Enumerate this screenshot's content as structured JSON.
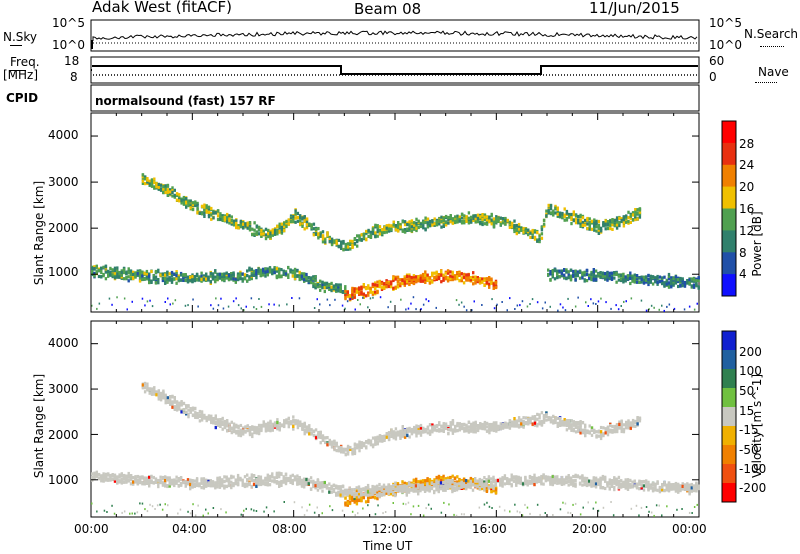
{
  "header": {
    "station": "Adak West (fitACF)",
    "beam": "Beam 08",
    "date": "11/Jun/2015"
  },
  "panels": {
    "nsky_label": "N.Sky",
    "nsky_ticks": [
      "10^5",
      "10^0"
    ],
    "nsearch_label": "N.Search",
    "nsearch_ticks": [
      "10^5",
      "10^0"
    ],
    "freq_label_line1": "Freq.",
    "freq_label_line2": "[MHz]",
    "freq_ticks": [
      "18",
      "8"
    ],
    "nave_label": "Nave",
    "nave_ticks": [
      "60",
      "0"
    ],
    "cpid_label": "CPID",
    "cpid_text": "normalsound (fast) 157 RF"
  },
  "axes": {
    "ylabel": "Slant Range [km]",
    "yticks": [
      "4000",
      "3000",
      "2000",
      "1000"
    ],
    "xticks": [
      "00:00",
      "04:00",
      "08:00",
      "12:00",
      "16:00",
      "20:00",
      "00:00"
    ],
    "xlabel": "Time UT"
  },
  "colors": {
    "power": [
      "#1010ff",
      "#2050a8",
      "#30806c",
      "#50a050",
      "#f0c000",
      "#f08000",
      "#e83010",
      "#ff0000"
    ],
    "velocity": [
      "#ff0000",
      "#f05010",
      "#f08000",
      "#f0b000",
      "#c8c8c0",
      "#70c040",
      "#308050",
      "#2060a0",
      "#1020d0"
    ]
  },
  "chart_data": [
    {
      "type": "heatmap",
      "title": "Power",
      "colorbar_label": "Power [dB]",
      "colorbar_ticks": [
        "28",
        "24",
        "20",
        "16",
        "12",
        "8",
        "4"
      ],
      "ylim": [
        180,
        4500
      ],
      "xlim": [
        "00:00",
        "24:00"
      ],
      "echo_bands": [
        {
          "t": [
            2.0,
            3.0,
            4.0,
            5.0,
            6.0,
            7.0,
            7.5,
            8.0,
            8.5,
            9.0,
            9.5,
            10.0,
            11.0,
            12.0,
            13.0,
            14.0,
            15.0,
            16.0,
            17.0,
            17.7,
            18.0,
            19.0,
            20.0,
            21.0,
            21.7
          ],
          "range": [
            3100,
            2850,
            2500,
            2300,
            2100,
            1900,
            2050,
            2300,
            2100,
            1900,
            1750,
            1600,
            1950,
            2050,
            2100,
            2200,
            2250,
            2200,
            2000,
            1850,
            2450,
            2250,
            2050,
            2200,
            2400
          ],
          "power_db": 14
        },
        {
          "t": [
            0.0,
            2.0,
            4.0,
            6.0,
            7.0,
            8.0,
            9.0,
            10.0
          ],
          "range": [
            1100,
            1000,
            950,
            1000,
            1100,
            1050,
            800,
            700
          ],
          "power_db": 12
        },
        {
          "t": [
            10.0,
            11.0,
            12.0,
            13.0,
            14.0,
            15.0,
            16.0
          ],
          "range": [
            600,
            700,
            850,
            950,
            1000,
            950,
            800
          ],
          "power_db": 22
        },
        {
          "t": [
            18.0,
            20.0,
            22.0,
            24.0
          ],
          "range": [
            1050,
            1000,
            900,
            850
          ],
          "power_db": 10
        }
      ]
    },
    {
      "type": "heatmap",
      "title": "Velocity",
      "colorbar_label": "Velocity [m s^-1]",
      "colorbar_ticks": [
        "200",
        "100",
        "50",
        "15",
        "-15",
        "-50",
        "-100",
        "-200"
      ],
      "ylim": [
        180,
        4500
      ],
      "xlim": [
        "00:00",
        "24:00"
      ],
      "echo_bands": [
        {
          "t": [
            2.0,
            4.0,
            6.0,
            8.0,
            10.0,
            12.0,
            14.0,
            16.0,
            18.0,
            20.0,
            21.7
          ],
          "range": [
            3100,
            2500,
            2100,
            2300,
            1650,
            2050,
            2200,
            2200,
            2400,
            2050,
            2350
          ],
          "velocity": 0
        },
        {
          "t": [
            10.0,
            11.0,
            12.0,
            13.0,
            14.0,
            15.0,
            16.0
          ],
          "range": [
            600,
            700,
            850,
            950,
            1000,
            950,
            800
          ],
          "velocity": -60
        },
        {
          "t": [
            0.0,
            4.0,
            8.0,
            10.0,
            18.0,
            22.0,
            24.0
          ],
          "range": [
            1100,
            950,
            1050,
            750,
            1050,
            900,
            850
          ],
          "velocity": 0
        }
      ]
    }
  ]
}
